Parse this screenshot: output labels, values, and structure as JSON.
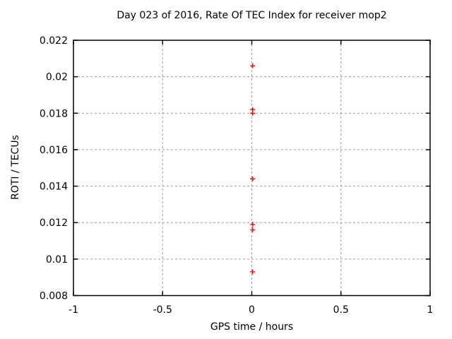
{
  "chart_data": {
    "type": "scatter",
    "title": "Day 023 of 2016, Rate Of TEC Index for receiver mop2",
    "xlabel": "GPS time / hours",
    "ylabel": "ROTI / TECUs",
    "xlim": [
      -1,
      1
    ],
    "ylim": [
      0.008,
      0.022
    ],
    "x_ticks": [
      "-1",
      "-0.5",
      "0",
      "0.5",
      "1"
    ],
    "y_ticks": [
      "0.008",
      "0.01",
      "0.012",
      "0.014",
      "0.016",
      "0.018",
      "0.02",
      "0.022"
    ],
    "grid": true,
    "legend_position": "none",
    "marker": "plus",
    "marker_color": "#ff0000",
    "grid_color": "#9a9a9a",
    "border_color": "#000000",
    "background_color": "#ffffff",
    "points": [
      {
        "x": 0.005,
        "y": 0.0206
      },
      {
        "x": 0.005,
        "y": 0.0182
      },
      {
        "x": 0.005,
        "y": 0.018
      },
      {
        "x": 0.005,
        "y": 0.0144
      },
      {
        "x": 0.005,
        "y": 0.0119
      },
      {
        "x": 0.005,
        "y": 0.0116
      },
      {
        "x": 0.005,
        "y": 0.0093
      }
    ]
  }
}
